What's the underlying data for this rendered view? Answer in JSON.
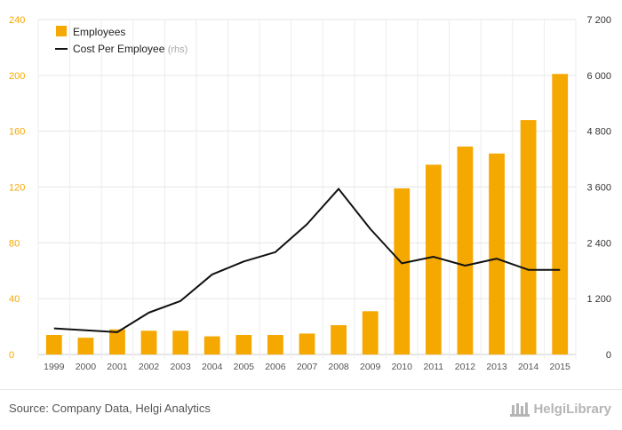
{
  "chart_data": {
    "type": "bar",
    "categories": [
      "1999",
      "2000",
      "2001",
      "2002",
      "2003",
      "2004",
      "2005",
      "2006",
      "2007",
      "2008",
      "2009",
      "2010",
      "2011",
      "2012",
      "2013",
      "2014",
      "2015"
    ],
    "series": [
      {
        "name": "Employees",
        "type": "bar",
        "axis": "left",
        "color": "#f5a800",
        "values": [
          14,
          12,
          18,
          17,
          17,
          13,
          14,
          14,
          15,
          21,
          31,
          119,
          136,
          149,
          144,
          168,
          201
        ]
      },
      {
        "name": "Cost Per Employee",
        "name_suffix": "(rhs)",
        "type": "line",
        "axis": "right",
        "color": "#111111",
        "values": [
          560,
          520,
          480,
          900,
          1150,
          1720,
          2000,
          2200,
          2800,
          3560,
          2700,
          1960,
          2100,
          1910,
          2060,
          1820,
          1820
        ]
      }
    ],
    "y_left": {
      "min": 0,
      "max": 240,
      "ticks": [
        "0",
        "40",
        "80",
        "120",
        "160",
        "200",
        "240"
      ],
      "tick_values": [
        0,
        40,
        80,
        120,
        160,
        200,
        240
      ],
      "color": "#f5a800"
    },
    "y_right": {
      "min": 0,
      "max": 7200,
      "ticks": [
        "0",
        "1 200",
        "2 400",
        "3 600",
        "4 800",
        "6 000",
        "7 200"
      ],
      "tick_values": [
        0,
        1200,
        2400,
        3600,
        4800,
        6000,
        7200
      ]
    },
    "grid": true,
    "legend_position": "top-left"
  },
  "footer": {
    "source": "Source: Company Data, Helgi Analytics",
    "logo_text": "HelgiLibrary"
  }
}
